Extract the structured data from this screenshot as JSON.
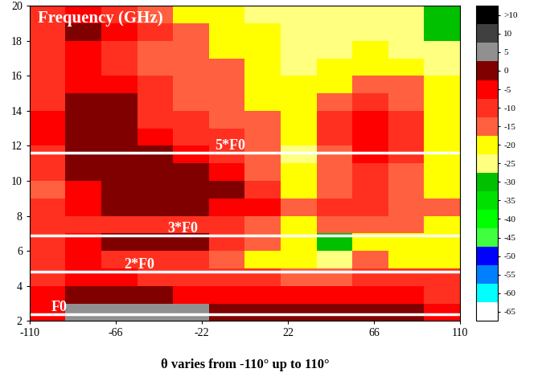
{
  "chart_data": {
    "type": "heatmap",
    "xlabel": "θ varies from -110° up to 110°",
    "annotation": "Frequency (GHz)",
    "xlim": [
      -110,
      110
    ],
    "ylim": [
      2,
      20
    ],
    "xticks": [
      -110,
      -66,
      -22,
      22,
      66,
      110
    ],
    "yticks": [
      2,
      4,
      6,
      8,
      10,
      12,
      14,
      16,
      18,
      20
    ],
    "x_edges": [
      -110,
      -91.67,
      -73.33,
      -55,
      -36.67,
      -18.33,
      0,
      18.33,
      36.67,
      55,
      73.33,
      91.67,
      110
    ],
    "y_edges": [
      2,
      3,
      4,
      5,
      6,
      7,
      8,
      9,
      10,
      11,
      12,
      13,
      14,
      15,
      16,
      17,
      18,
      19,
      20
    ],
    "cells": [
      [
        -5,
        5,
        5,
        5,
        5,
        0,
        0,
        0,
        0,
        0,
        0,
        -5
      ],
      [
        -5,
        0,
        0,
        0,
        -5,
        -5,
        -5,
        -5,
        -5,
        -5,
        -5,
        -10
      ],
      [
        -10,
        -5,
        -5,
        -10,
        -10,
        -10,
        -10,
        -15,
        -15,
        -10,
        -10,
        -10
      ],
      [
        -10,
        -5,
        -10,
        -10,
        -10,
        -15,
        -20,
        -20,
        -25,
        -15,
        -20,
        -20
      ],
      [
        -10,
        -5,
        0,
        0,
        0,
        -10,
        -15,
        -20,
        -30,
        -20,
        -20,
        -20
      ],
      [
        -10,
        -10,
        -10,
        -10,
        -10,
        -10,
        -15,
        -20,
        -15,
        -15,
        -15,
        -20
      ],
      [
        -10,
        -5,
        0,
        0,
        0,
        -5,
        -5,
        -15,
        -10,
        -10,
        -15,
        -15
      ],
      [
        -15,
        -5,
        0,
        0,
        0,
        0,
        -10,
        -20,
        -15,
        -10,
        -15,
        -20
      ],
      [
        -10,
        0,
        0,
        0,
        0,
        -5,
        -15,
        -20,
        -15,
        -10,
        -15,
        -20
      ],
      [
        -10,
        0,
        0,
        0,
        -5,
        -10,
        -15,
        -25,
        -15,
        -5,
        -10,
        -20
      ],
      [
        -5,
        0,
        0,
        -5,
        -10,
        -10,
        -15,
        -20,
        -10,
        -5,
        -10,
        -20
      ],
      [
        -5,
        0,
        0,
        -10,
        -10,
        -15,
        -15,
        -20,
        -10,
        -5,
        -10,
        -20
      ],
      [
        -10,
        0,
        0,
        -10,
        -15,
        -15,
        -20,
        -20,
        -15,
        -10,
        -15,
        -20
      ],
      [
        -10,
        -5,
        -5,
        -10,
        -15,
        -15,
        -20,
        -20,
        -20,
        -15,
        -15,
        -20
      ],
      [
        -10,
        -5,
        -10,
        -15,
        -15,
        -15,
        -20,
        -25,
        -20,
        -20,
        -20,
        -25
      ],
      [
        -10,
        -5,
        -10,
        -15,
        -15,
        -20,
        -20,
        -25,
        -25,
        -20,
        -25,
        -25
      ],
      [
        -10,
        0,
        -5,
        -10,
        -15,
        -20,
        -20,
        -25,
        -25,
        -25,
        -25,
        -30
      ],
      [
        -10,
        -5,
        -10,
        -15,
        -20,
        -20,
        -25,
        -25,
        -25,
        -25,
        -25,
        -30
      ]
    ],
    "colorbar": {
      "range": [
        -67.5,
        17.5
      ],
      "boundaries": [
        -67.5,
        -62.5,
        -57.5,
        -52.5,
        -47.5,
        -42.5,
        -37.5,
        -32.5,
        -27.5,
        -22.5,
        -17.5,
        -12.5,
        -7.5,
        -2.5,
        2.5,
        7.5,
        12.5,
        17.5
      ],
      "colors": [
        "#ffffff",
        "#00ffff",
        "#0080ff",
        "#0000ff",
        "#40ff40",
        "#00ff00",
        "#00e000",
        "#00c000",
        "#ffff80",
        "#ffff00",
        "#ff6040",
        "#ff3020",
        "#ff0000",
        "#800000",
        "#909090",
        "#404040",
        "#000000"
      ],
      "ticks": [
        {
          "value": 15,
          "label": ">10"
        },
        10,
        5,
        0,
        -5,
        -10,
        -15,
        -20,
        -25,
        -30,
        -35,
        -40,
        -45,
        -50,
        -55,
        -60,
        -65
      ]
    },
    "lines": [
      {
        "label": "5*F0",
        "y": 11.6,
        "color": "#ffffff"
      },
      {
        "label": "3*F0",
        "y": 6.9,
        "color": "#ffffff"
      },
      {
        "label": "2*F0",
        "y": 4.8,
        "color": "#ffffff"
      },
      {
        "label": "F0",
        "y": 2.4,
        "color": "#ffffff"
      }
    ]
  }
}
